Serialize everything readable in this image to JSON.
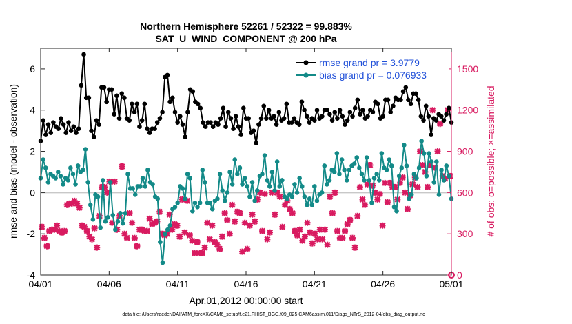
{
  "chart_data": {
    "type": "line",
    "title": "Northern Hemisphere 52261 / 52322 = 99.883%",
    "subtitle": "SAT_U_WIND_COMPONENT @ 200 hPa",
    "xlabel": "Apr.01,2012 00:00:00 start",
    "ylabel": "rmse and bias (model - observation)",
    "y2label": "# of obs: o=possible; ×=assimilated",
    "footer": "data file: /Users/raeder/DAI/ATM_forcXX/CAM6_setup/f.e21.FHIST_BGC.f09_025.CAM6assim.011/Diags_NTrS_2012-04/obs_diag_output.nc",
    "xlim": [
      0,
      30
    ],
    "ylim": [
      -4,
      7
    ],
    "y2lim": [
      0,
      1650
    ],
    "x_ticks": [
      0,
      5,
      10,
      15,
      20,
      25,
      30
    ],
    "x_tick_labels": [
      "04/01",
      "04/06",
      "04/11",
      "04/16",
      "04/21",
      "04/26",
      "05/01"
    ],
    "y_ticks": [
      -4,
      -2,
      0,
      2,
      4,
      6
    ],
    "y2_ticks": [
      0,
      300,
      600,
      900,
      1200,
      1500
    ],
    "zero_line": 0,
    "legend_location": "top-right",
    "series": [
      {
        "name": "rmse grand pr = 3.9779",
        "color": "#000000",
        "axis": "left",
        "marker": "filled-circle",
        "values": [
          2.5,
          3.5,
          2.8,
          3.3,
          2.9,
          3.4,
          3.2,
          3.1,
          3.6,
          3.3,
          2.9,
          3.4,
          3.0,
          3.2,
          2.9,
          3.1,
          5.2,
          6.7,
          4.6,
          4.6,
          3.0,
          2.7,
          3.5,
          3.3,
          5.1,
          5.1,
          4.4,
          5.0,
          5.0,
          3.8,
          4.7,
          3.6,
          4.8,
          4.6,
          3.6,
          3.5,
          4.3,
          3.9,
          4.3,
          3.2,
          3.5,
          4.3,
          3.1,
          2.9,
          3.1,
          3.1,
          3.4,
          3.6,
          3.9,
          5.6,
          5.7,
          4.4,
          4.6,
          3.9,
          3.4,
          3.7,
          3.3,
          2.7,
          3.9,
          5.0,
          4.9,
          4.4,
          4.3,
          4.1,
          3.4,
          3.2,
          3.4,
          3.4,
          3.2,
          3.4,
          3.3,
          3.6,
          4.1,
          3.2,
          3.9,
          3.6,
          3.1,
          3.7,
          3.2,
          2.8,
          4.1,
          3.6,
          3.6,
          2.9,
          3.0,
          2.4,
          3.3,
          3.6,
          4.2,
          3.6,
          4.0,
          3.6,
          3.7,
          3.3,
          3.9,
          3.5,
          3.6,
          4.3,
          3.4,
          3.4,
          3.6,
          3.4,
          3.3,
          4.4,
          4.0,
          3.7,
          3.4,
          3.6,
          3.5,
          4.0,
          3.6,
          3.7,
          4.0,
          4.0,
          3.8,
          3.5,
          3.9,
          3.6,
          4.0,
          3.7,
          3.3,
          3.5,
          3.9,
          3.7,
          4.1,
          4.5,
          3.8,
          4.0,
          3.6,
          3.7,
          4.0,
          3.9,
          4.4,
          4.3,
          3.6,
          3.7,
          4.5,
          4.5,
          3.9,
          4.2,
          4.6,
          4.5,
          4.5,
          4.9,
          5.1,
          4.5,
          4.3,
          4.8,
          4.8,
          4.5,
          3.7,
          3.5,
          4.2,
          3.7,
          2.8,
          3.6,
          3.5,
          3.8,
          3.7,
          3.5,
          3.8,
          4.1,
          3.4
        ]
      },
      {
        "name": "bias grand pr = 0.076933",
        "color": "#138a88",
        "axis": "left",
        "marker": "filled-circle",
        "values": [
          0.7,
          1.6,
          1.2,
          0.5,
          0.9,
          0.8,
          0.7,
          1.0,
          0.8,
          0.4,
          0.7,
          0.6,
          1.2,
          0.9,
          0.4,
          1.3,
          1.0,
          1.1,
          2.1,
          0.5,
          -0.6,
          -1.3,
          -0.1,
          -0.2,
          -1.7,
          0.6,
          -1.4,
          -1.2,
          0.5,
          -1.1,
          -1.8,
          -1.4,
          -1.0,
          -1.5,
          -1.0,
          0.9,
          0.2,
          0.2,
          -0.1,
          0.3,
          0.3,
          0.7,
          0.3,
          1.1,
          0.5,
          0.4,
          -0.2,
          -0.3,
          -2.4,
          -3.4,
          -2.0,
          -1.8,
          -1.6,
          -0.8,
          -0.7,
          -0.5,
          0.3,
          0.2,
          -0.3,
          0.9,
          0.7,
          -0.9,
          -0.5,
          -0.7,
          -0.5,
          1.1,
          0.5,
          -0.5,
          -0.5,
          -0.8,
          -0.4,
          -0.3,
          0.9,
          0.1,
          -0.4,
          0.0,
          1.0,
          0.4,
          1.6,
          0.9,
          1.2,
          0.4,
          0.7,
          0.3,
          -0.2,
          0.5,
          -0.4,
          0.1,
          0.8,
          0.9,
          1.8,
          0.6,
          0.3,
          1.0,
          0.1,
          1.5,
          0.3,
          0.6,
          -0.2,
          -0.3,
          -0.1,
          -0.2,
          0.4,
          0.0,
          0.7,
          0.3,
          -0.2,
          -0.6,
          -0.3,
          -0.6,
          0.3,
          -0.4,
          -0.1,
          0.0,
          1.3,
          0.4,
          0.6,
          1.1,
          1.0,
          1.9,
          0.9,
          1.6,
          1.1,
          0.6,
          1.1,
          1.3,
          1.4,
          1.7,
          1.2,
          0.9,
          0.6,
          1.7,
          0.6,
          -0.5,
          0.7,
          0.9,
          0.6,
          1.9,
          1.2,
          1.1,
          1.6,
          1.3,
          -0.7,
          -0.9,
          0.8,
          1.2,
          2.3,
          1.3,
          -0.3,
          -0.1,
          0.9,
          0.7,
          1.2,
          2.5,
          1.9,
          0.8,
          1.9,
          1.5,
          0.5,
          1.5,
          -0.1,
          1.1,
          0.6,
          1.3,
          0.8,
          -0.3
        ]
      },
      {
        "name": "# of obs assimilated",
        "color": "#d81b60",
        "axis": "right",
        "marker": "x",
        "values": [
          350,
          270,
          210,
          320,
          330,
          330,
          360,
          320,
          310,
          320,
          510,
          520,
          520,
          540,
          520,
          490,
          360,
          350,
          320,
          280,
          260,
          340,
          200,
          430,
          640,
          640,
          600,
          680,
          380,
          680,
          330,
          430,
          790,
          300,
          270,
          450,
          380,
          270,
          210,
          330,
          330,
          320,
          320,
          410,
          370,
          380,
          390,
          460,
          300,
          290,
          300,
          440,
          330,
          370,
          360,
          280,
          550,
          310,
          540,
          290,
          250,
          160,
          240,
          160,
          160,
          200,
          380,
          260,
          360,
          240,
          220,
          190,
          280,
          450,
          400,
          300,
          510,
          390,
          460,
          450,
          170,
          380,
          190,
          360,
          440,
          390,
          550,
          600,
          320,
          590,
          260,
          310,
          600,
          440,
          600,
          570,
          350,
          510,
          540,
          480,
          450,
          320,
          290,
          330,
          250,
          280,
          380,
          310,
          230,
          300,
          260,
          330,
          260,
          330,
          220,
          570,
          450,
          600,
          320,
          270,
          270,
          320,
          370,
          400,
          270,
          200,
          430,
          640,
          550,
          510,
          660,
          800,
          650,
          600,
          550,
          590,
          360,
          670,
          530,
          670,
          640,
          640,
          550,
          670,
          710,
          600,
          480,
          580,
          660,
          710,
          640,
          900,
          800,
          750,
          640,
          800,
          1200,
          780,
          900,
          1100,
          720,
          700,
          1200,
          720
        ]
      },
      {
        "name": "# of obs possible",
        "color": "#d81b60",
        "axis": "right",
        "marker": "circle",
        "values_note": "hidden behind assimilated markers",
        "last_value": 0
      }
    ]
  }
}
